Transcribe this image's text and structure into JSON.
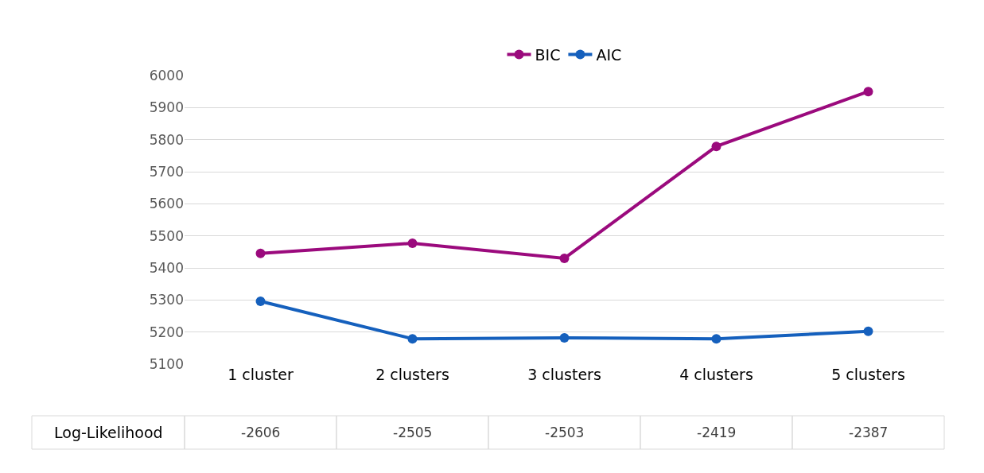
{
  "chart_data": {
    "type": "line",
    "categories": [
      "1 cluster",
      "2 clusters",
      "3 clusters",
      "4 clusters",
      "5 clusters"
    ],
    "series": [
      {
        "name": "BIC",
        "color": "#9b0a7d",
        "values": [
          5445,
          5477,
          5430,
          5779,
          5950
        ]
      },
      {
        "name": "AIC",
        "color": "#1560bd",
        "values": [
          5296,
          5179,
          5182,
          5179,
          5202
        ]
      }
    ],
    "ylim": [
      5100,
      6000
    ],
    "yticks": [
      5100,
      5200,
      5300,
      5400,
      5500,
      5600,
      5700,
      5800,
      5900,
      6000
    ],
    "grid": "y",
    "legend": "top",
    "marker": "circle",
    "line_style": "solid",
    "annotations": [
      "Log-Likelihood",
      "-2606",
      "-2505",
      "-2503",
      "-2419",
      "-2387"
    ]
  }
}
